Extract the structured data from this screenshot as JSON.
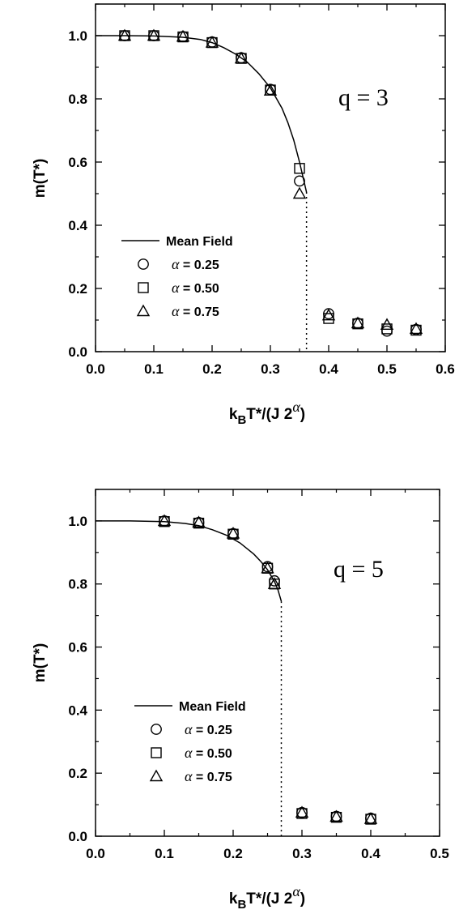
{
  "chart_data": [
    {
      "type": "scatter",
      "annotation": "q = 3",
      "xlabel": {
        "base": "k",
        "sub": "B",
        "mid": "T*/(J 2",
        "sup": "α",
        "end": ")"
      },
      "ylabel": "m(T*)",
      "xlim": [
        0.0,
        0.6
      ],
      "ylim": [
        0.0,
        1.1
      ],
      "x_ticks": [
        0.0,
        0.1,
        0.2,
        0.3,
        0.4,
        0.5,
        0.6
      ],
      "x_tick_labels": [
        "0.0",
        "0.1",
        "0.2",
        "0.3",
        "0.4",
        "0.5",
        "0.6"
      ],
      "y_ticks": [
        0.0,
        0.2,
        0.4,
        0.6,
        0.8,
        1.0
      ],
      "y_tick_labels": [
        "0.0",
        "0.2",
        "0.4",
        "0.6",
        "0.8",
        "1.0"
      ],
      "legend": {
        "placement": "lower-left",
        "entries": [
          {
            "type": "line",
            "label": "Mean Field"
          },
          {
            "type": "circle",
            "symbol": "α",
            "label": "= 0.25"
          },
          {
            "type": "square",
            "symbol": "α",
            "label": "= 0.50"
          },
          {
            "type": "triangle",
            "symbol": "α",
            "label": "= 0.75"
          }
        ]
      },
      "mean_field": {
        "x": [
          0.0,
          0.05,
          0.1,
          0.15,
          0.18,
          0.2,
          0.22,
          0.24,
          0.26,
          0.28,
          0.3,
          0.32,
          0.33,
          0.34,
          0.35,
          0.357,
          0.362
        ],
        "y": [
          1.0,
          1.0,
          0.999,
          0.995,
          0.988,
          0.978,
          0.962,
          0.942,
          0.917,
          0.88,
          0.835,
          0.77,
          0.725,
          0.67,
          0.6,
          0.545,
          0.505
        ]
      },
      "transition": {
        "x": 0.362,
        "y_from": 0.505,
        "y_to": 0.0
      },
      "series": [
        {
          "name": "α = 0.25",
          "marker": "circle",
          "x": [
            0.05,
            0.1,
            0.15,
            0.2,
            0.25,
            0.3,
            0.35,
            0.4,
            0.45,
            0.5,
            0.55
          ],
          "y": [
            1.0,
            1.0,
            0.997,
            0.98,
            0.93,
            0.83,
            0.54,
            0.12,
            0.09,
            0.065,
            0.07
          ]
        },
        {
          "name": "α = 0.50",
          "marker": "square",
          "x": [
            0.05,
            0.1,
            0.15,
            0.2,
            0.25,
            0.3,
            0.35,
            0.4,
            0.45,
            0.5,
            0.55
          ],
          "y": [
            1.0,
            1.0,
            0.996,
            0.978,
            0.928,
            0.828,
            0.58,
            0.105,
            0.088,
            0.072,
            0.068
          ]
        },
        {
          "name": "α = 0.75",
          "marker": "triangle",
          "x": [
            0.05,
            0.1,
            0.15,
            0.2,
            0.25,
            0.3,
            0.35,
            0.4,
            0.45,
            0.5,
            0.55
          ],
          "y": [
            1.0,
            1.0,
            0.997,
            0.978,
            0.928,
            0.826,
            0.5,
            0.115,
            0.09,
            0.085,
            0.072
          ]
        }
      ]
    },
    {
      "type": "scatter",
      "annotation": "q = 5",
      "xlabel": {
        "base": "k",
        "sub": "B",
        "mid": "T*/(J 2",
        "sup": "α",
        "end": ")"
      },
      "ylabel": "m(T*)",
      "xlim": [
        0.0,
        0.5
      ],
      "ylim": [
        0.0,
        1.1
      ],
      "x_ticks": [
        0.0,
        0.1,
        0.2,
        0.3,
        0.4,
        0.5
      ],
      "x_tick_labels": [
        "0.0",
        "0.1",
        "0.2",
        "0.3",
        "0.4",
        "0.5"
      ],
      "y_ticks": [
        0.0,
        0.2,
        0.4,
        0.6,
        0.8,
        1.0
      ],
      "y_tick_labels": [
        "0.0",
        "0.2",
        "0.4",
        "0.6",
        "0.8",
        "1.0"
      ],
      "legend": {
        "placement": "lower-left",
        "entries": [
          {
            "type": "line",
            "label": "Mean Field"
          },
          {
            "type": "circle",
            "symbol": "α",
            "label": "= 0.25"
          },
          {
            "type": "square",
            "symbol": "α",
            "label": "= 0.50"
          },
          {
            "type": "triangle",
            "symbol": "α",
            "label": "= 0.75"
          }
        ]
      },
      "mean_field": {
        "x": [
          0.0,
          0.05,
          0.1,
          0.13,
          0.15,
          0.17,
          0.19,
          0.21,
          0.23,
          0.24,
          0.25,
          0.26,
          0.265,
          0.27
        ],
        "y": [
          1.0,
          1.0,
          0.998,
          0.992,
          0.985,
          0.972,
          0.955,
          0.93,
          0.895,
          0.872,
          0.845,
          0.808,
          0.782,
          0.745
        ]
      },
      "transition": {
        "x": 0.27,
        "y_from": 0.745,
        "y_to": 0.0
      },
      "series": [
        {
          "name": "α = 0.25",
          "marker": "circle",
          "x": [
            0.1,
            0.15,
            0.2,
            0.25,
            0.26,
            0.3,
            0.35,
            0.4
          ],
          "y": [
            1.0,
            0.995,
            0.96,
            0.855,
            0.81,
            0.075,
            0.063,
            0.057
          ]
        },
        {
          "name": "α = 0.50",
          "marker": "square",
          "x": [
            0.1,
            0.15,
            0.2,
            0.25,
            0.26,
            0.3,
            0.35,
            0.4
          ],
          "y": [
            0.998,
            0.993,
            0.958,
            0.85,
            0.8,
            0.072,
            0.06,
            0.054
          ]
        },
        {
          "name": "α = 0.75",
          "marker": "triangle",
          "x": [
            0.1,
            0.15,
            0.2,
            0.25,
            0.26,
            0.3,
            0.35,
            0.4
          ],
          "y": [
            1.0,
            0.995,
            0.96,
            0.85,
            0.8,
            0.075,
            0.062,
            0.055
          ]
        }
      ]
    }
  ]
}
